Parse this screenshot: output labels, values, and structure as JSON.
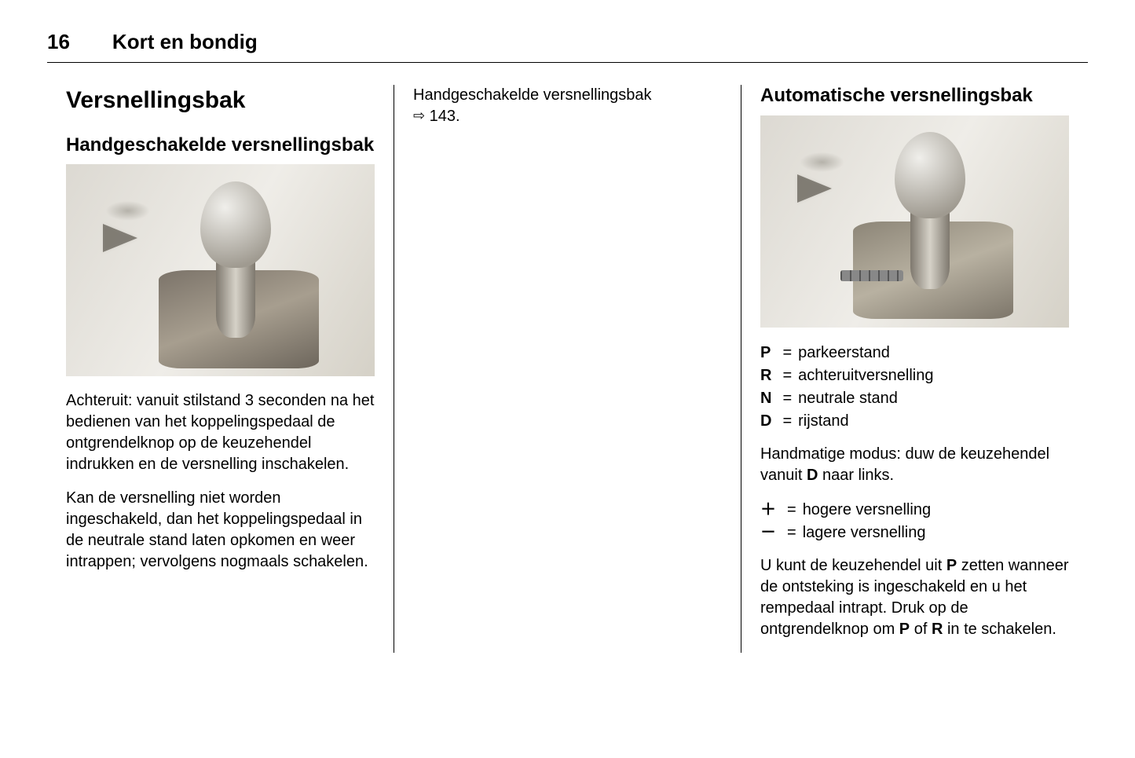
{
  "page_number": "16",
  "chapter_title": "Kort en bondig",
  "col1": {
    "h1": "Versnellingsbak",
    "h2": "Handgeschakelde versnellingsbak",
    "p1": "Achteruit: vanuit stilstand 3 seconden na het bedienen van het koppelingspedaal de ontgrendelknop op de keuzehendel indrukken en de versnelling inschakelen.",
    "p2": "Kan de versnelling niet worden ingeschakeld, dan het koppelingspedaal in de neutrale stand laten opkomen en weer intrappen; vervolgens nogmaals schakelen."
  },
  "col2": {
    "xref_text": "Handgeschakelde versnellingsbak",
    "xref_symbol": "⇨",
    "xref_page": "143."
  },
  "col3": {
    "h2": "Automatische versnellingsbak",
    "positions": [
      {
        "key": "P",
        "val": "parkeerstand"
      },
      {
        "key": "R",
        "val": "achteruitversnelling"
      },
      {
        "key": "N",
        "val": "neutrale stand"
      },
      {
        "key": "D",
        "val": "rijstand"
      }
    ],
    "manual_pre": "Handmatige modus: duw de keuzehendel vanuit ",
    "manual_bold": "D",
    "manual_post": " naar links.",
    "shifts": [
      {
        "key": "＋",
        "val": "hogere versnelling"
      },
      {
        "key": "－",
        "val": "lagere versnelling"
      }
    ],
    "foot_1": "U kunt de keuzehendel uit ",
    "foot_b1": "P",
    "foot_2": " zetten wanneer de ontsteking is ingeschakeld en u het rempedaal intrapt. Druk op de ontgrendelknop om ",
    "foot_b2": "P",
    "foot_3": " of ",
    "foot_b3": "R",
    "foot_4": " in te schakelen."
  },
  "eq_sign": "="
}
